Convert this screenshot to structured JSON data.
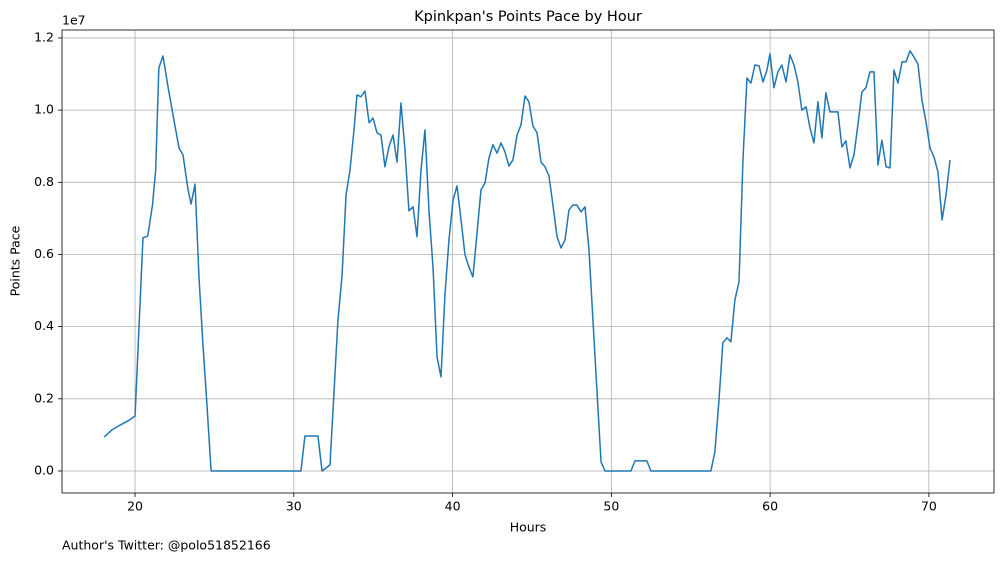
{
  "chart_data": {
    "type": "line",
    "title": "Kpinkpan's Points Pace by Hour",
    "x_label": "Hours",
    "y_label": "Points Pace",
    "y_offset_label": "1e7",
    "footnote": "Author's Twitter: @polo51852166",
    "grid": true,
    "xlim": [
      15.4,
      74.1
    ],
    "ylim": [
      -0.061,
      1.222
    ],
    "xticks": [
      20,
      30,
      40,
      50,
      60,
      70
    ],
    "yticks": [
      {
        "value": 0,
        "label": "0.0"
      },
      {
        "value": 0.2,
        "label": "0.2"
      },
      {
        "value": 0.4,
        "label": "0.4"
      },
      {
        "value": 0.6,
        "label": "0.6"
      },
      {
        "value": 0.8,
        "label": "0.8"
      },
      {
        "value": 1.0,
        "label": "1.0"
      },
      {
        "value": 1.2,
        "label": "1.2"
      }
    ],
    "x": [
      18.05,
      18.55,
      19.05,
      19.56,
      20.0,
      20.5,
      20.8,
      21.1,
      21.3,
      21.5,
      21.76,
      22.08,
      22.46,
      22.77,
      23.02,
      23.34,
      23.53,
      23.78,
      24.03,
      24.28,
      24.53,
      24.79,
      30.45,
      30.7,
      31.52,
      31.78,
      32.28,
      32.78,
      33.04,
      33.29,
      33.54,
      33.79,
      33.98,
      34.23,
      34.48,
      34.74,
      34.99,
      35.24,
      35.49,
      35.74,
      35.99,
      36.25,
      36.5,
      36.75,
      37.0,
      37.25,
      37.51,
      37.76,
      38.01,
      38.26,
      38.51,
      38.77,
      39.02,
      39.27,
      39.52,
      39.77,
      40.03,
      40.28,
      40.53,
      40.78,
      41.03,
      41.28,
      41.54,
      41.79,
      42.04,
      42.29,
      42.54,
      42.8,
      43.05,
      43.3,
      43.55,
      43.8,
      44.06,
      44.31,
      44.56,
      44.81,
      45.06,
      45.32,
      45.57,
      45.82,
      46.07,
      46.32,
      46.58,
      46.83,
      47.08,
      47.33,
      47.58,
      47.83,
      48.09,
      48.34,
      48.59,
      48.84,
      49.09,
      49.35,
      49.6,
      51.23,
      51.49,
      52.24,
      52.49,
      56.27,
      56.52,
      56.78,
      57.02,
      57.28,
      57.53,
      57.78,
      58.04,
      58.29,
      58.54,
      58.79,
      59.04,
      59.3,
      59.55,
      59.8,
      59.99,
      60.24,
      60.49,
      60.74,
      61.0,
      61.25,
      61.5,
      61.75,
      62.0,
      62.26,
      62.51,
      62.76,
      63.01,
      63.26,
      63.51,
      63.77,
      64.02,
      64.27,
      64.52,
      64.77,
      65.03,
      65.28,
      65.53,
      65.78,
      66.03,
      66.29,
      66.54,
      66.79,
      67.04,
      67.3,
      67.55,
      67.8,
      68.05,
      68.31,
      68.56,
      68.81,
      69.06,
      69.31,
      69.56,
      69.82,
      70.07,
      70.32,
      70.57,
      70.83,
      71.08,
      71.33
    ],
    "series": [
      {
        "name": "Points Pace",
        "color": "#1f77b4",
        "values": [
          0.094,
          0.114,
          0.127,
          0.139,
          0.152,
          0.646,
          0.651,
          0.737,
          0.834,
          1.117,
          1.15,
          1.064,
          0.97,
          0.895,
          0.876,
          0.779,
          0.74,
          0.795,
          0.535,
          0.349,
          0.183,
          0,
          0,
          0.097,
          0.097,
          0,
          0.017,
          0.418,
          0.543,
          0.765,
          0.834,
          0.945,
          1.042,
          1.037,
          1.053,
          0.965,
          0.978,
          0.937,
          0.931,
          0.843,
          0.898,
          0.931,
          0.856,
          1.02,
          0.89,
          0.721,
          0.732,
          0.649,
          0.834,
          0.945,
          0.723,
          0.563,
          0.316,
          0.261,
          0.488,
          0.64,
          0.751,
          0.79,
          0.696,
          0.599,
          0.565,
          0.538,
          0.66,
          0.779,
          0.798,
          0.867,
          0.904,
          0.881,
          0.909,
          0.884,
          0.845,
          0.862,
          0.931,
          0.959,
          1.039,
          1.023,
          0.956,
          0.937,
          0.856,
          0.843,
          0.818,
          0.737,
          0.649,
          0.618,
          0.64,
          0.723,
          0.737,
          0.737,
          0.718,
          0.732,
          0.613,
          0.418,
          0.225,
          0.025,
          0,
          0,
          0.028,
          0.028,
          0,
          0,
          0.053,
          0.197,
          0.355,
          0.369,
          0.358,
          0.474,
          0.524,
          0.862,
          1.089,
          1.075,
          1.125,
          1.123,
          1.078,
          1.111,
          1.156,
          1.062,
          1.106,
          1.125,
          1.078,
          1.153,
          1.125,
          1.078,
          1.0,
          1.009,
          0.951,
          0.909,
          1.023,
          0.923,
          1.048,
          0.995,
          0.995,
          0.995,
          0.898,
          0.915,
          0.84,
          0.876,
          0.959,
          1.05,
          1.062,
          1.106,
          1.106,
          0.848,
          0.917,
          0.843,
          0.84,
          1.111,
          1.075,
          1.134,
          1.134,
          1.164,
          1.147,
          1.128,
          1.028,
          0.967,
          0.895,
          0.87,
          0.829,
          0.696,
          0.765,
          0.862
        ]
      }
    ]
  }
}
